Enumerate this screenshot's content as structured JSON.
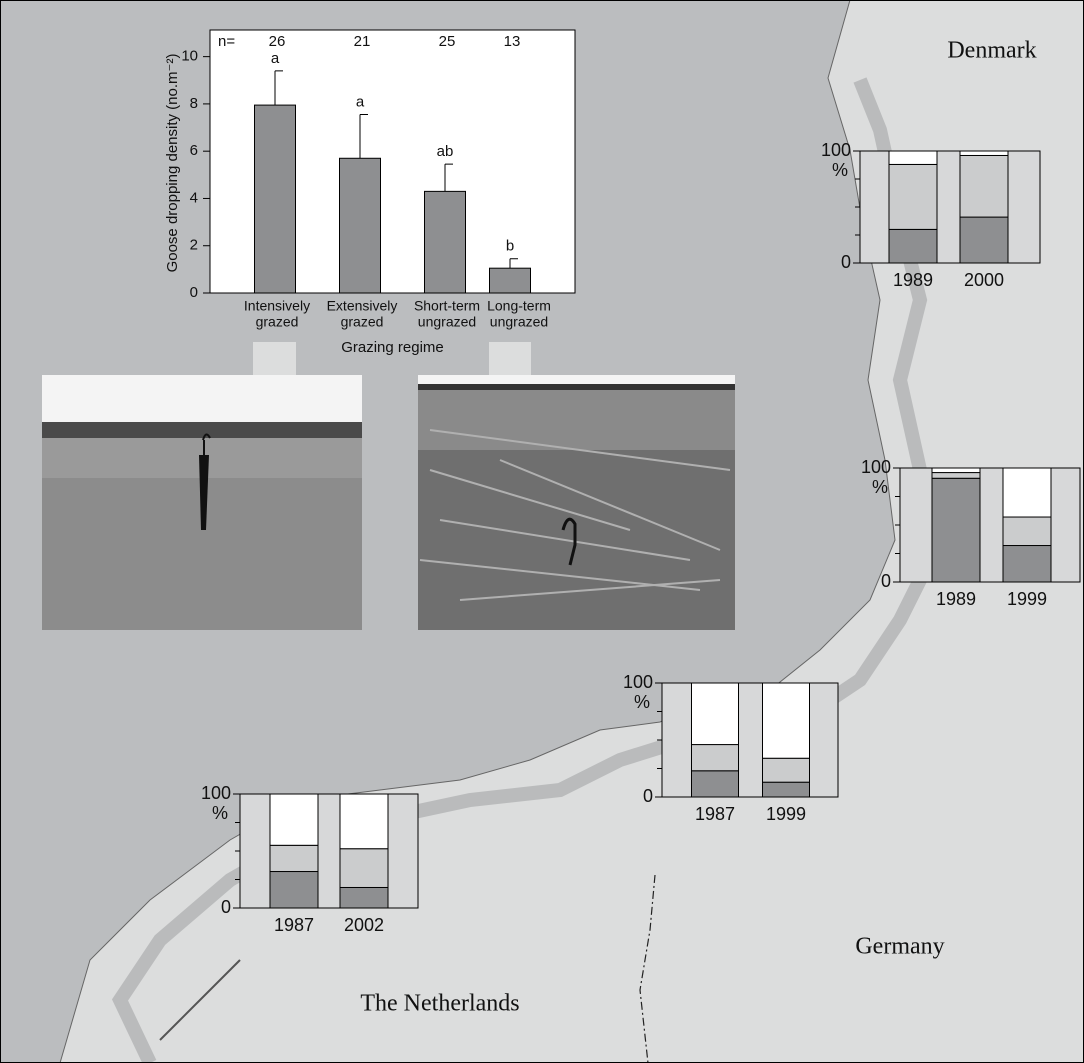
{
  "chart_data": [
    {
      "type": "bar",
      "ylabel": "Goose dropping density (no.m⁻²)",
      "xlabel": "Grazing regime",
      "n_label": "n=",
      "n": [
        26,
        21,
        25,
        13
      ],
      "categories": [
        [
          "Intensively",
          "grazed"
        ],
        [
          "Extensively",
          "grazed"
        ],
        [
          "Short-term",
          "ungrazed"
        ],
        [
          "Long-term",
          "ungrazed"
        ]
      ],
      "values": [
        7.95,
        5.7,
        4.3,
        1.05
      ],
      "errors": [
        1.45,
        1.85,
        1.15,
        0.4
      ],
      "letters": [
        "a",
        "a",
        "ab",
        "b"
      ],
      "color": "#8e8f91",
      "ylim": [
        0,
        11
      ],
      "yticks": [
        0,
        2,
        4,
        6,
        8,
        10
      ]
    },
    {
      "type": "stacked_bar",
      "categories": [
        "1989",
        "2000"
      ],
      "series": [
        {
          "color": "#8e8f91",
          "values": [
            30,
            41
          ]
        },
        {
          "color": "#cbcccd",
          "values": [
            58,
            55
          ]
        },
        {
          "color": "#ffffff",
          "values": [
            12,
            4
          ]
        }
      ],
      "ylim": [
        0,
        100
      ],
      "yticks": [
        0,
        100
      ],
      "minor_yticks": [
        25,
        50,
        75
      ],
      "unit_label": "%"
    },
    {
      "type": "stacked_bar",
      "categories": [
        "1989",
        "1999"
      ],
      "series": [
        {
          "color": "#8e8f91",
          "values": [
            91,
            32
          ]
        },
        {
          "color": "#cbcccd",
          "values": [
            5,
            25
          ]
        },
        {
          "color": "#ffffff",
          "values": [
            4,
            43
          ]
        }
      ],
      "ylim": [
        0,
        100
      ],
      "yticks": [
        0,
        100
      ],
      "minor_yticks": [
        25,
        50,
        75
      ],
      "unit_label": "%"
    },
    {
      "type": "stacked_bar",
      "categories": [
        "1987",
        "1999"
      ],
      "series": [
        {
          "color": "#8e8f91",
          "values": [
            23,
            13
          ]
        },
        {
          "color": "#cbcccd",
          "values": [
            23,
            21
          ]
        },
        {
          "color": "#ffffff",
          "values": [
            54,
            66
          ]
        }
      ],
      "ylim": [
        0,
        100
      ],
      "yticks": [
        0,
        100
      ],
      "minor_yticks": [
        25,
        50,
        75
      ],
      "unit_label": "%"
    },
    {
      "type": "stacked_bar",
      "categories": [
        "1987",
        "2002"
      ],
      "series": [
        {
          "color": "#8e8f91",
          "values": [
            32,
            18
          ]
        },
        {
          "color": "#cbcccd",
          "values": [
            23,
            34
          ]
        },
        {
          "color": "#ffffff",
          "values": [
            45,
            48
          ]
        }
      ],
      "ylim": [
        0,
        100
      ],
      "yticks": [
        0,
        100
      ],
      "minor_yticks": [
        25,
        50,
        75
      ],
      "unit_label": "%"
    }
  ],
  "map_labels": {
    "denmark": "Denmark",
    "germany": "Germany",
    "netherlands": "The Netherlands"
  }
}
